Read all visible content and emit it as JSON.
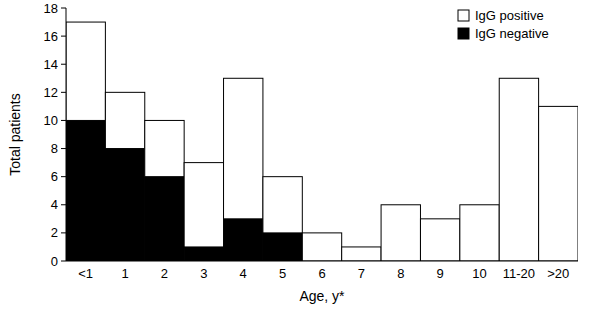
{
  "chart_data": {
    "type": "bar",
    "stacked": true,
    "legend": "upper right",
    "x_label": "Age, y*",
    "y_label": "Total patients",
    "categories": [
      "<1",
      "1",
      "2",
      "3",
      "4",
      "5",
      "6",
      "7",
      "8",
      "9",
      "10",
      "11-20",
      ">20"
    ],
    "series": [
      {
        "name": "IgG negative",
        "color": "#000000",
        "values": [
          10,
          8,
          6,
          1,
          3,
          2,
          0,
          0,
          0,
          0,
          0,
          0,
          0
        ]
      },
      {
        "name": "IgG positive",
        "color": "#ffffff",
        "values": [
          7,
          4,
          4,
          6,
          10,
          4,
          2,
          1,
          4,
          3,
          4,
          13,
          11
        ]
      }
    ],
    "ylim": [
      0,
      18
    ],
    "yticks": [
      0,
      2,
      4,
      6,
      8,
      10,
      12,
      14,
      16,
      18
    ]
  }
}
